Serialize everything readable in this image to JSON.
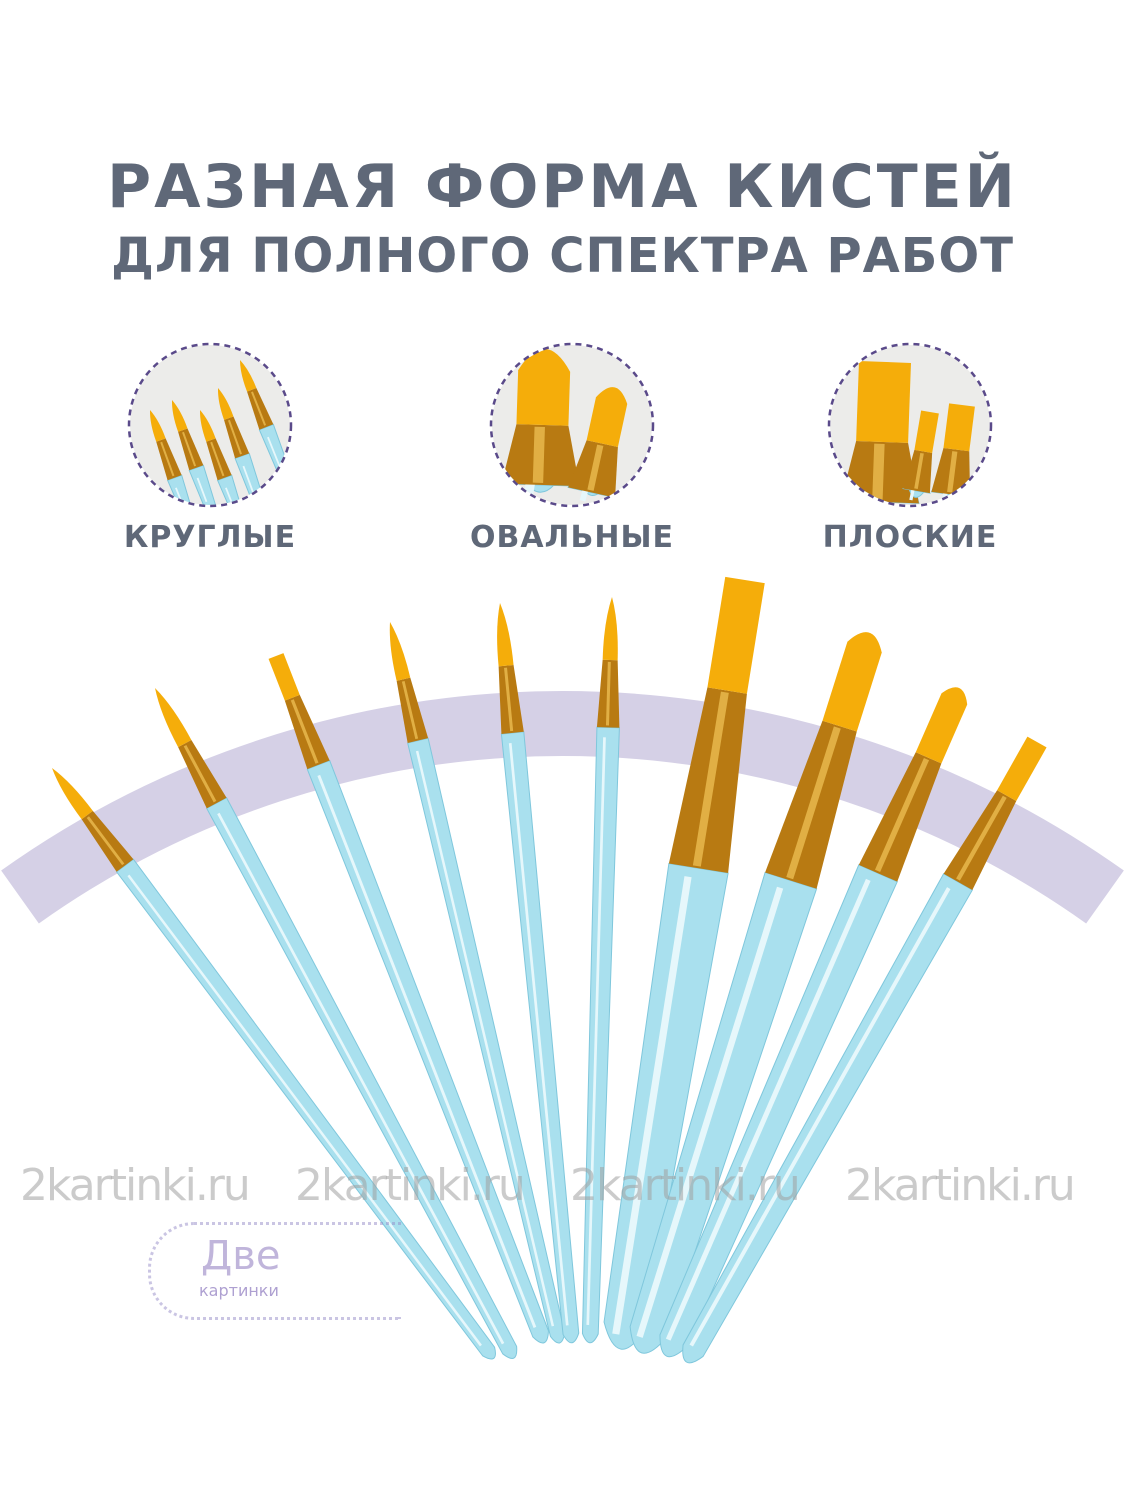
{
  "heading": {
    "line1": "РАЗНАЯ ФОРМА КИСТЕЙ",
    "line2": "ДЛЯ ПОЛНОГО СПЕКТРА РАБОТ"
  },
  "categories": [
    {
      "label": "КРУГЛЫЕ",
      "icon": "round-brushes-icon"
    },
    {
      "label": "ОВАЛЬНЫЕ",
      "icon": "oval-brushes-icon"
    },
    {
      "label": "ПЛОСКИЕ",
      "icon": "flat-brushes-icon"
    }
  ],
  "watermark": {
    "text": "2kartinki.ru",
    "logo_main": "Две",
    "logo_sub": "картинки"
  },
  "colors": {
    "text": "#5f6878",
    "arc": "#d5d0e6",
    "handle": "#a9e0ee",
    "bristle": "#f5ad0a",
    "ferrule": "#b87a12",
    "circle_border": "#5a4a8a"
  }
}
